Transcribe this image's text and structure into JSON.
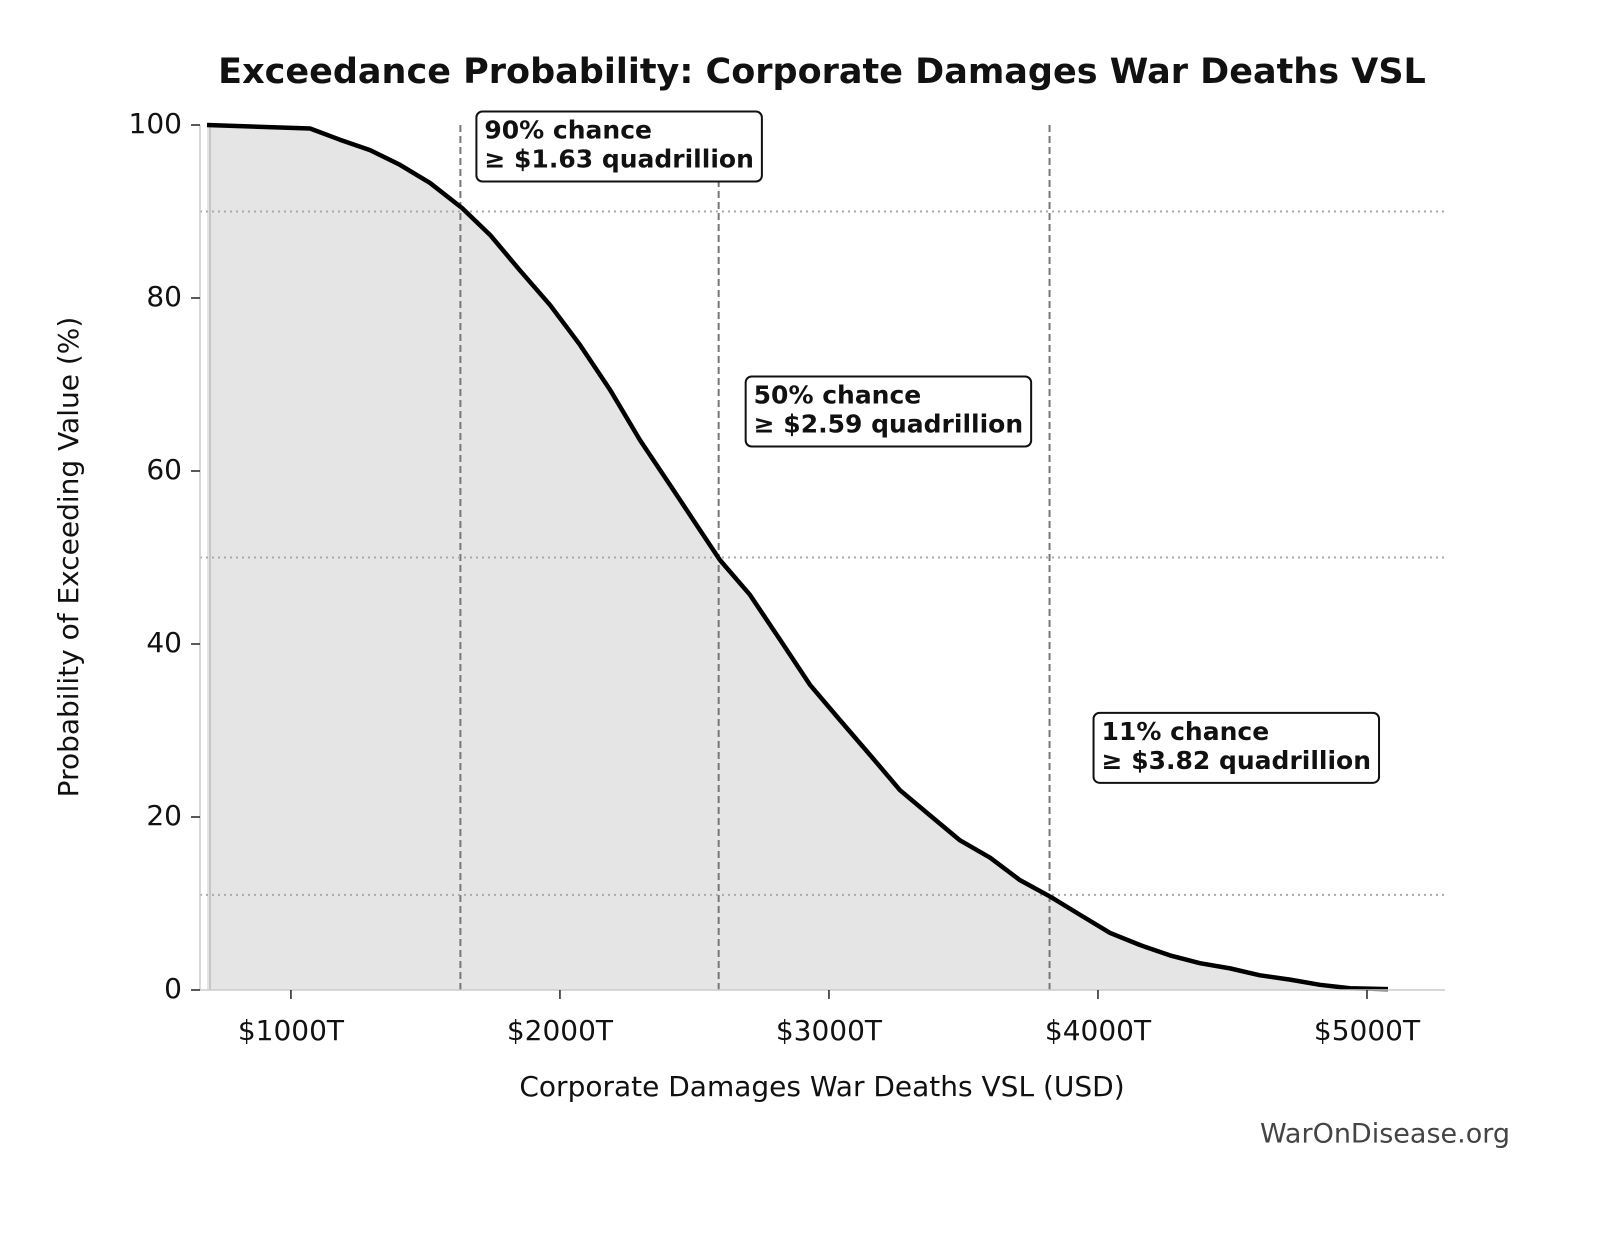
{
  "chart_data": {
    "type": "line",
    "title": "Exceedance Probability: Corporate Damages War Deaths VSL",
    "x_label": "Corporate Damages War Deaths VSL (USD)",
    "y_label": "Probability of Exceeding Value (%)",
    "watermark": "WarOnDisease.org",
    "x": [
      688,
      1071,
      1182,
      1294,
      1405,
      1517,
      1636,
      1740,
      1851,
      1963,
      2074,
      2186,
      2297,
      2409,
      2520,
      2595,
      2706,
      2818,
      2929,
      3041,
      3152,
      3264,
      3375,
      3487,
      3599,
      3710,
      3822,
      3933,
      4045,
      4156,
      4268,
      4379,
      4491,
      4602,
      4714,
      4825,
      4937,
      5078
    ],
    "series": [
      {
        "name": "Exceedance probability",
        "color": "#000000",
        "fill": "#e5e5e5",
        "values": [
          100,
          99.6,
          98.3,
          97.1,
          95.4,
          93.3,
          90.4,
          87.3,
          83.2,
          79.2,
          74.6,
          69.4,
          63.6,
          58.4,
          53.2,
          49.7,
          45.7,
          40.5,
          35.3,
          31.2,
          27.2,
          23.1,
          20.2,
          17.3,
          15.3,
          12.7,
          10.8,
          8.7,
          6.6,
          5.2,
          4.0,
          3.1,
          2.5,
          1.7,
          1.2,
          0.6,
          0.2,
          0.1
        ]
      }
    ],
    "xlim": [
      662,
      5290
    ],
    "ylim": [
      0,
      100
    ],
    "xticks": [
      {
        "value": 1000,
        "label": "$1000T"
      },
      {
        "value": 2000,
        "label": "$2000T"
      },
      {
        "value": 3000,
        "label": "$3000T"
      },
      {
        "value": 4000,
        "label": "$4000T"
      },
      {
        "value": 5000,
        "label": "$5000T"
      }
    ],
    "yticks": [
      0,
      20,
      40,
      60,
      80,
      100
    ],
    "annotations": [
      {
        "lines": [
          "90% chance",
          "≥ $1.63 quadrillion"
        ],
        "probability": 90,
        "value": 1630
      },
      {
        "lines": [
          "50% chance",
          "≥ $2.59 quadrillion"
        ],
        "probability": 50,
        "value": 2590
      },
      {
        "lines": [
          "11% chance",
          "≥ $3.82 quadrillion"
        ],
        "probability": 11,
        "value": 3820
      }
    ]
  }
}
